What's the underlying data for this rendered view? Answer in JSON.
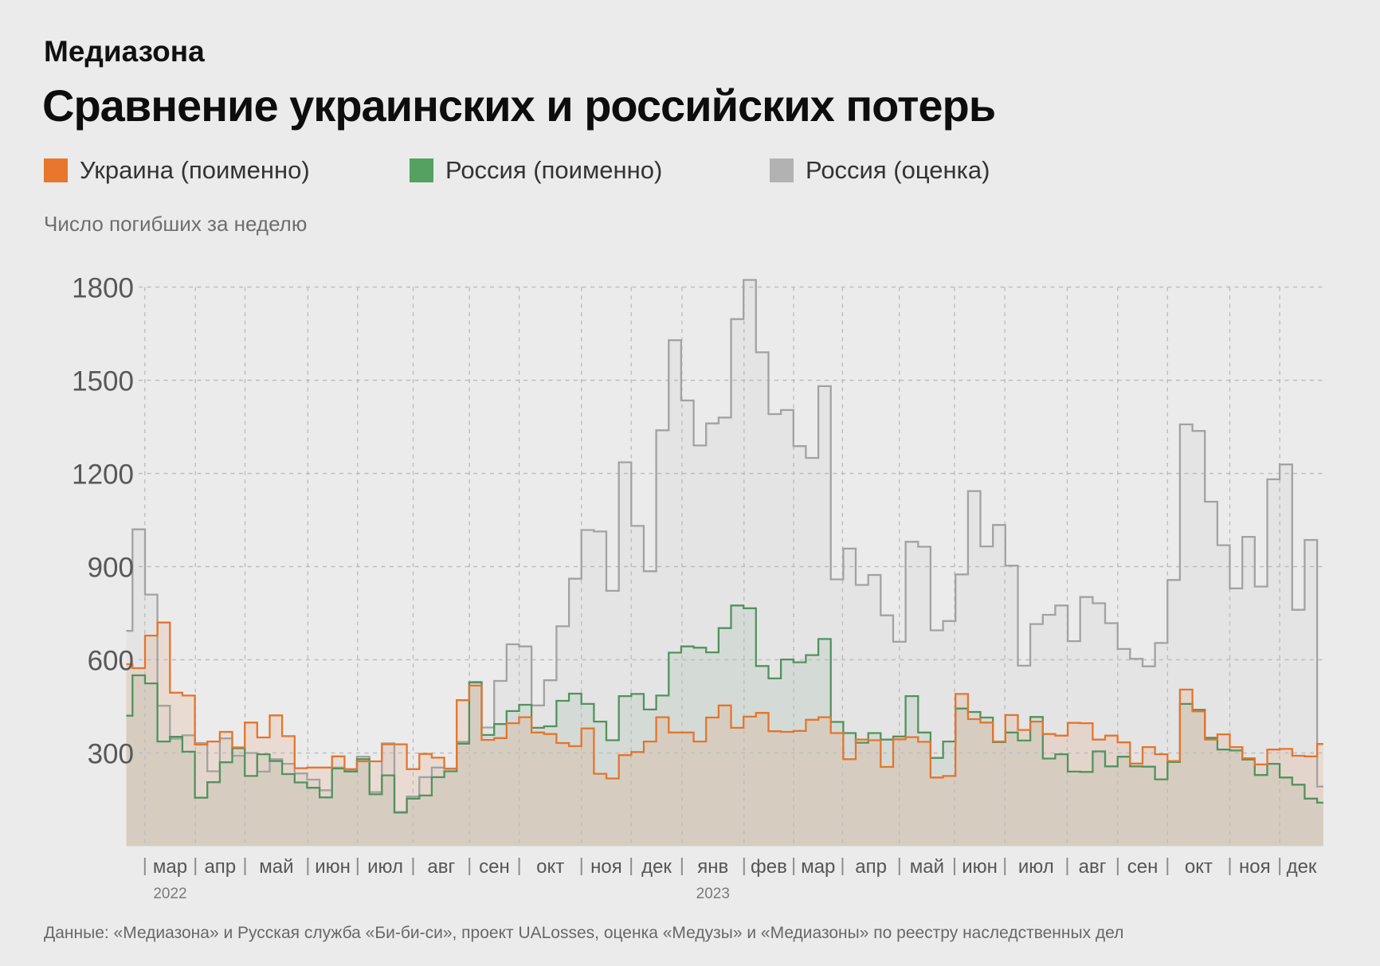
{
  "header": {
    "brand": "Медиазона",
    "title": "Сравнение украинских и российских потерь"
  },
  "legend": {
    "items": [
      {
        "label": "Украина (поименно)",
        "color": "#e8772d"
      },
      {
        "label": "Россия (поименно)",
        "color": "#55a161"
      },
      {
        "label": "Россия (оценка)",
        "color": "#b2b2b2"
      }
    ]
  },
  "footer": {
    "source": "Данные: «Медиазона» и Русская служба «Би-би-си», проект UALosses, оценка «Медузы» и «Медиазоны» по реестру наследственных дел"
  },
  "chart_data": {
    "type": "step-area",
    "title": "Сравнение украинских и российских потерь",
    "ylabel": "Число погибших за неделю",
    "xlabel": "",
    "ylim": [
      0,
      1870
    ],
    "y_ticks": [
      300,
      600,
      900,
      1200,
      1500,
      1800
    ],
    "x_range_weeks": [
      -0.5,
      95.5
    ],
    "grid": true,
    "legend_position": "top",
    "x_ticks": {
      "months": [
        "мар",
        "апр",
        "май",
        "июн",
        "июл",
        "авг",
        "сен",
        "окт",
        "ноя",
        "дек",
        "янв",
        "фев",
        "мар",
        "апр",
        "май",
        "июн",
        "июл",
        "авг",
        "сен",
        "окт",
        "ноя",
        "дек"
      ],
      "week_pos": [
        0.99,
        5.04,
        9.02,
        14.06,
        18.05,
        22.5,
        27.02,
        31.01,
        36.0,
        39.99,
        44.06,
        49.04,
        53.02,
        56.94,
        61.5,
        65.92,
        69.96,
        74.96,
        79.01,
        83.0,
        88.0,
        92.0
      ],
      "years": [
        {
          "label": "2022",
          "month_index": 0
        },
        {
          "label": "2023",
          "month_index": 10
        }
      ]
    },
    "series": [
      {
        "name": "Россия (оценка)",
        "color": "#a2a2a2",
        "fill_opacity": 0.1,
        "values": [
          693,
          1020,
          810,
          452,
          346,
          357,
          332,
          241,
          347,
          291,
          300,
          240,
          280,
          265,
          234,
          214,
          180,
          253,
          243,
          288,
          174,
          331,
          110,
          160,
          222,
          253,
          250,
          336,
          529,
          382,
          532,
          650,
          643,
          453,
          534,
          708,
          861,
          1018,
          1013,
          822,
          1236,
          1031,
          885,
          1339,
          1629,
          1435,
          1290,
          1361,
          1380,
          1697,
          1823,
          1590,
          1391,
          1404,
          1288,
          1250,
          1481,
          859,
          958,
          841,
          873,
          743,
          658,
          980,
          964,
          695,
          725,
          875,
          1143,
          965,
          1034,
          903,
          581,
          715,
          745,
          775,
          660,
          802,
          782,
          718,
          635,
          603,
          579,
          654,
          857,
          1358,
          1337,
          1109,
          969,
          830,
          996,
          836,
          1181,
          1229,
          761,
          986,
          192
        ]
      },
      {
        "name": "Россия (поименно)",
        "color": "#52925e",
        "fill_opacity": 0.1,
        "values": [
          420,
          550,
          524,
          337,
          352,
          304,
          156,
          206,
          270,
          315,
          226,
          296,
          274,
          232,
          205,
          188,
          157,
          250,
          240,
          280,
          167,
          228,
          108,
          153,
          163,
          222,
          241,
          330,
          527,
          358,
          393,
          435,
          455,
          381,
          386,
          468,
          491,
          458,
          401,
          341,
          483,
          490,
          440,
          485,
          623,
          643,
          639,
          624,
          702,
          775,
          766,
          580,
          540,
          601,
          592,
          615,
          667,
          400,
          364,
          333,
          364,
          343,
          353,
          483,
          366,
          284,
          337,
          443,
          432,
          414,
          335,
          366,
          340,
          416,
          282,
          296,
          240,
          239,
          305,
          257,
          288,
          257,
          256,
          215,
          271,
          458,
          439,
          349,
          311,
          308,
          279,
          229,
          265,
          221,
          198,
          153,
          140
        ]
      },
      {
        "name": "Украина (поименно)",
        "color": "#e4752e",
        "fill_opacity": 0.13,
        "values": [
          586,
          573,
          678,
          720,
          494,
          485,
          327,
          337,
          368,
          318,
          398,
          350,
          421,
          354,
          251,
          253,
          253,
          289,
          248,
          273,
          273,
          328,
          328,
          248,
          297,
          285,
          249,
          470,
          517,
          342,
          348,
          396,
          415,
          366,
          361,
          332,
          322,
          379,
          233,
          218,
          293,
          303,
          337,
          415,
          366,
          366,
          337,
          414,
          453,
          381,
          417,
          429,
          370,
          368,
          371,
          407,
          415,
          364,
          280,
          343,
          341,
          255,
          344,
          351,
          336,
          221,
          226,
          490,
          409,
          398,
          337,
          422,
          374,
          401,
          361,
          356,
          397,
          396,
          343,
          356,
          334,
          266,
          319,
          296,
          274,
          504,
          434,
          343,
          360,
          319,
          283,
          263,
          311,
          313,
          291,
          289,
          329
        ]
      }
    ]
  }
}
